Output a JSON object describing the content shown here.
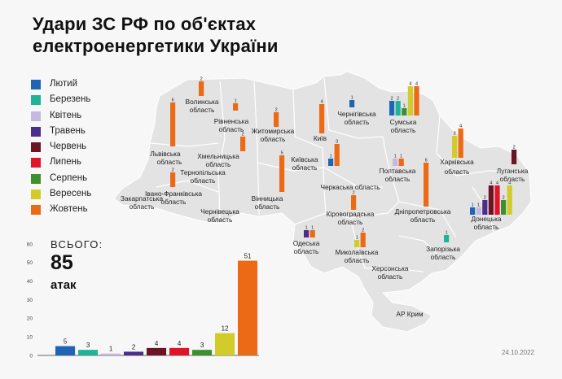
{
  "title_lines": [
    "Удари ЗС РФ по об'єктах",
    "електроенергетики України"
  ],
  "colors": {
    "Лютий": "#1f64b5",
    "Березень": "#1fb39a",
    "Квітень": "#c6b8e0",
    "Травень": "#4b2d8a",
    "Червень": "#6b1424",
    "Липень": "#e01429",
    "Серпень": "#3e8f2e",
    "Вересень": "#d2cc2a",
    "Жовтень": "#ec6a16"
  },
  "legend": [
    {
      "label": "Лютий",
      "color": "#1f64b5"
    },
    {
      "label": "Березень",
      "color": "#1fb39a"
    },
    {
      "label": "Квітень",
      "color": "#c6b8e0"
    },
    {
      "label": "Травень",
      "color": "#4b2d8a"
    },
    {
      "label": "Червень",
      "color": "#6b1424"
    },
    {
      "label": "Липень",
      "color": "#e01429"
    },
    {
      "label": "Серпень",
      "color": "#3e8f2e"
    },
    {
      "label": "Вересень",
      "color": "#d2cc2a"
    },
    {
      "label": "Жовтень",
      "color": "#ec6a16"
    }
  ],
  "total": {
    "label": "ВСЬОГО:",
    "value": "85",
    "unit": "атак"
  },
  "date": "24.10.2022",
  "chart_data": [
    {
      "type": "bar",
      "title": "",
      "categories": [
        "Лютий",
        "Березень",
        "Квітень",
        "Травень",
        "Червень",
        "Липень",
        "Серпень",
        "Вересень",
        "Жовтень"
      ],
      "values": [
        5,
        3,
        1,
        2,
        4,
        4,
        3,
        12,
        51
      ],
      "ylim": [
        0,
        60
      ],
      "yticks": [
        0,
        10,
        20,
        30,
        40,
        50,
        60
      ],
      "grid": false
    },
    {
      "type": "bar",
      "title": "",
      "description": "per-region bars on the map",
      "regions": [
        {
          "name": "Волинська область",
          "series": [
            {
              "month": "Жовтень",
              "value": 2
            }
          ]
        },
        {
          "name": "Рівненська область",
          "series": [
            {
              "month": "Жовтень",
              "value": 1
            }
          ]
        },
        {
          "name": "Житомирська область",
          "series": [
            {
              "month": "Жовтень",
              "value": 2
            }
          ]
        },
        {
          "name": "Київ",
          "series": [
            {
              "month": "Жовтень",
              "value": 4
            }
          ]
        },
        {
          "name": "Чернігівська область",
          "series": [
            {
              "month": "Лютий",
              "value": 1
            }
          ]
        },
        {
          "name": "Сумська область",
          "series": [
            {
              "month": "Лютий",
              "value": 2
            },
            {
              "month": "Березень",
              "value": 2
            },
            {
              "month": "Серпень",
              "value": 1
            },
            {
              "month": "Вересень",
              "value": 4
            },
            {
              "month": "Жовтень",
              "value": 4
            }
          ]
        },
        {
          "name": "Львівська область",
          "series": [
            {
              "month": "Жовтень",
              "value": 6
            }
          ]
        },
        {
          "name": "Хмельницька область",
          "series": [
            {
              "month": "Жовтень",
              "value": 2
            }
          ]
        },
        {
          "name": "Київська область",
          "series": [
            {
              "month": "Лютий",
              "value": 1
            },
            {
              "month": "Жовтень",
              "value": 3
            }
          ]
        },
        {
          "name": "Полтавська область",
          "series": [
            {
              "month": "Квітень",
              "value": 1
            },
            {
              "month": "Жовтень",
              "value": 1
            }
          ]
        },
        {
          "name": "Харківська область",
          "series": [
            {
              "month": "Вересень",
              "value": 3
            },
            {
              "month": "Жовтень",
              "value": 4
            }
          ]
        },
        {
          "name": "Луганська область",
          "series": [
            {
              "month": "Червень",
              "value": 2
            }
          ]
        },
        {
          "name": "Тернопільська область",
          "series": []
        },
        {
          "name": "Івано-Франківська область",
          "series": [
            {
              "month": "Жовтень",
              "value": 2
            }
          ]
        },
        {
          "name": "Закарпатська область",
          "series": []
        },
        {
          "name": "Вінницька область",
          "series": [
            {
              "month": "Жовтень",
              "value": 5
            }
          ]
        },
        {
          "name": "Черкаська область",
          "series": []
        },
        {
          "name": "Дніпропетровська область",
          "series": [
            {
              "month": "Жовтень",
              "value": 6
            }
          ]
        },
        {
          "name": "Кіровоградська область",
          "series": [
            {
              "month": "Жовтень",
              "value": 2
            }
          ]
        },
        {
          "name": "Чернівецька область",
          "series": []
        },
        {
          "name": "Донецька область",
          "series": [
            {
              "month": "Лютий",
              "value": 1
            },
            {
              "month": "Квітень",
              "value": 1
            },
            {
              "month": "Травень",
              "value": 2
            },
            {
              "month": "Червень",
              "value": 4
            },
            {
              "month": "Липень",
              "value": 4
            },
            {
              "month": "Серпень",
              "value": 2
            },
            {
              "month": "Вересень",
              "value": 4
            }
          ]
        },
        {
          "name": "Одеська область",
          "series": [
            {
              "month": "Травень",
              "value": 1
            },
            {
              "month": "Жовтень",
              "value": 1
            }
          ]
        },
        {
          "name": "Миколаївська область",
          "series": [
            {
              "month": "Вересень",
              "value": 1
            },
            {
              "month": "Жовтень",
              "value": 2
            }
          ]
        },
        {
          "name": "Запорізька область",
          "series": [
            {
              "month": "Березень",
              "value": 1
            }
          ]
        },
        {
          "name": "Херсонська область",
          "series": []
        },
        {
          "name": "АР Крим",
          "series": []
        }
      ]
    }
  ]
}
